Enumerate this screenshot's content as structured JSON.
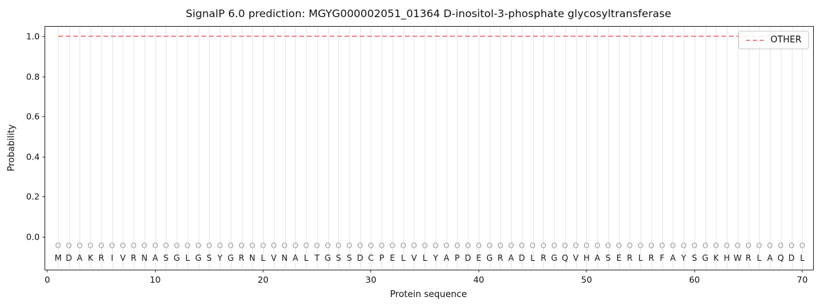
{
  "chart_data": {
    "type": "line",
    "title": "SignalP 6.0 prediction: MGYG000002051_01364 D-inositol-3-phosphate glycosyltransferase",
    "xlabel": "Protein sequence",
    "ylabel": "Probability",
    "xlim": [
      -0.2,
      71.0
    ],
    "ylim": [
      -0.164,
      1.048
    ],
    "xticks": [
      0,
      10,
      20,
      30,
      40,
      50,
      60,
      70
    ],
    "yticks": [
      0.0,
      0.2,
      0.4,
      0.6,
      0.8,
      1.0
    ],
    "grid": "vertical line at every residue position",
    "legend": {
      "position": "upper-right",
      "entries": [
        {
          "label": "OTHER",
          "color": "#f28b8b",
          "linestyle": "dashed"
        }
      ]
    },
    "series": [
      {
        "name": "OTHER",
        "x_start": 1,
        "x_end": 70,
        "constant_y": 1.0,
        "color": "#f28b8b",
        "linestyle": "dashed"
      }
    ],
    "sequence": "MDAKRIVRNASGLGSYGRNLVNALTGSSDCPELVLYAPDEGRADLRGQVHASERLRFAYSGKHWRLAQDL",
    "residue_marker": "O",
    "marker_y": -0.045,
    "letter_y": -0.105,
    "colors": {
      "grid": "#e7e7e7",
      "marker": "#9a9a9a",
      "sequence": "#1a1a1a",
      "axis": "#2b2b2b",
      "line": "#f28b8b"
    }
  }
}
